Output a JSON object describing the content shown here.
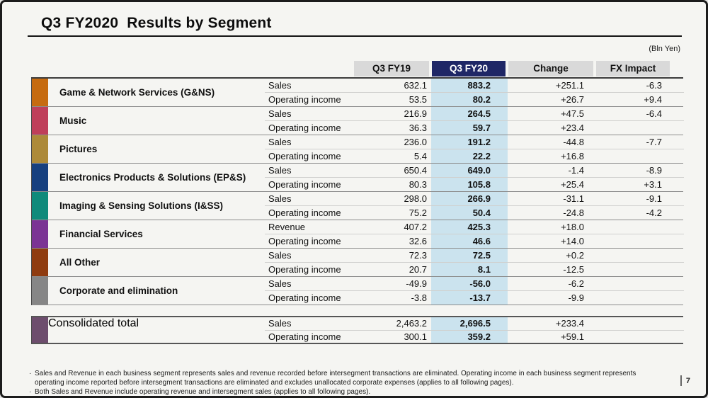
{
  "page": {
    "title": "Q3 FY2020  Results by Segment",
    "unit_label": "(Bln Yen)",
    "page_number": "7",
    "footnote_bullet": "·",
    "footnotes": [
      "Sales and Revenue in each business segment represents sales and revenue recorded before intersegment transactions are eliminated. Operating income in each business segment represents operating income reported before intersegment transactions are eliminated and excludes unallocated corporate expenses (applies to all following pages).",
      "Both Sales and Revenue include operating revenue and intersegment sales (applies to all following pages)."
    ]
  },
  "colors": {
    "header_highlight_bg": "#1f2766",
    "fy20_column_bg": "#cbe3ee"
  },
  "table": {
    "columns": [
      "Q3 FY19",
      "Q3 FY20",
      "Change",
      "FX Impact"
    ],
    "highlight_column": "Q3 FY20",
    "segments": [
      {
        "name": "Game & Network Services (G&NS)",
        "color": "#c66b10",
        "rows": [
          {
            "label": "Sales",
            "fy19": "632.1",
            "fy20": "883.2",
            "change": "+251.1",
            "fx": "-6.3"
          },
          {
            "label": "Operating income",
            "fy19": "53.5",
            "fy20": "80.2",
            "change": "+26.7",
            "fx": "+9.4"
          }
        ]
      },
      {
        "name": "Music",
        "color": "#bf3f5a",
        "rows": [
          {
            "label": "Sales",
            "fy19": "216.9",
            "fy20": "264.5",
            "change": "+47.5",
            "fx": "-6.4"
          },
          {
            "label": "Operating income",
            "fy19": "36.3",
            "fy20": "59.7",
            "change": "+23.4",
            "fx": ""
          }
        ]
      },
      {
        "name": "Pictures",
        "color": "#ad8a39",
        "rows": [
          {
            "label": "Sales",
            "fy19": "236.0",
            "fy20": "191.2",
            "change": "-44.8",
            "fx": "-7.7"
          },
          {
            "label": "Operating income",
            "fy19": "5.4",
            "fy20": "22.2",
            "change": "+16.8",
            "fx": ""
          }
        ]
      },
      {
        "name": "Electronics Products & Solutions (EP&S)",
        "color": "#17407f",
        "rows": [
          {
            "label": "Sales",
            "fy19": "650.4",
            "fy20": "649.0",
            "change": "-1.4",
            "fx": "-8.9"
          },
          {
            "label": "Operating income",
            "fy19": "80.3",
            "fy20": "105.8",
            "change": "+25.4",
            "fx": "+3.1"
          }
        ]
      },
      {
        "name": "Imaging & Sensing Solutions (I&SS)",
        "color": "#0f8a7b",
        "rows": [
          {
            "label": "Sales",
            "fy19": "298.0",
            "fy20": "266.9",
            "change": "-31.1",
            "fx": "-9.1"
          },
          {
            "label": "Operating income",
            "fy19": "75.2",
            "fy20": "50.4",
            "change": "-24.8",
            "fx": "-4.2"
          }
        ]
      },
      {
        "name": "Financial Services",
        "color": "#7b3494",
        "rows": [
          {
            "label": "Revenue",
            "fy19": "407.2",
            "fy20": "425.3",
            "change": "+18.0",
            "fx": ""
          },
          {
            "label": "Operating income",
            "fy19": "32.6",
            "fy20": "46.6",
            "change": "+14.0",
            "fx": ""
          }
        ]
      },
      {
        "name": "All Other",
        "color": "#8f3c10",
        "rows": [
          {
            "label": "Sales",
            "fy19": "72.3",
            "fy20": "72.5",
            "change": "+0.2",
            "fx": ""
          },
          {
            "label": "Operating income",
            "fy19": "20.7",
            "fy20": "8.1",
            "change": "-12.5",
            "fx": ""
          }
        ]
      },
      {
        "name": "Corporate and elimination",
        "color": "#868686",
        "rows": [
          {
            "label": "Sales",
            "fy19": "-49.9",
            "fy20": "-56.0",
            "change": "-6.2",
            "fx": ""
          },
          {
            "label": "Operating income",
            "fy19": "-3.8",
            "fy20": "-13.7",
            "change": "-9.9",
            "fx": ""
          }
        ]
      }
    ],
    "total": {
      "name": "Consolidated total",
      "color": "#6d4d6d",
      "rows": [
        {
          "label": "Sales",
          "fy19": "2,463.2",
          "fy20": "2,696.5",
          "change": "+233.4",
          "fx": ""
        },
        {
          "label": "Operating income",
          "fy19": "300.1",
          "fy20": "359.2",
          "change": "+59.1",
          "fx": ""
        }
      ]
    }
  }
}
